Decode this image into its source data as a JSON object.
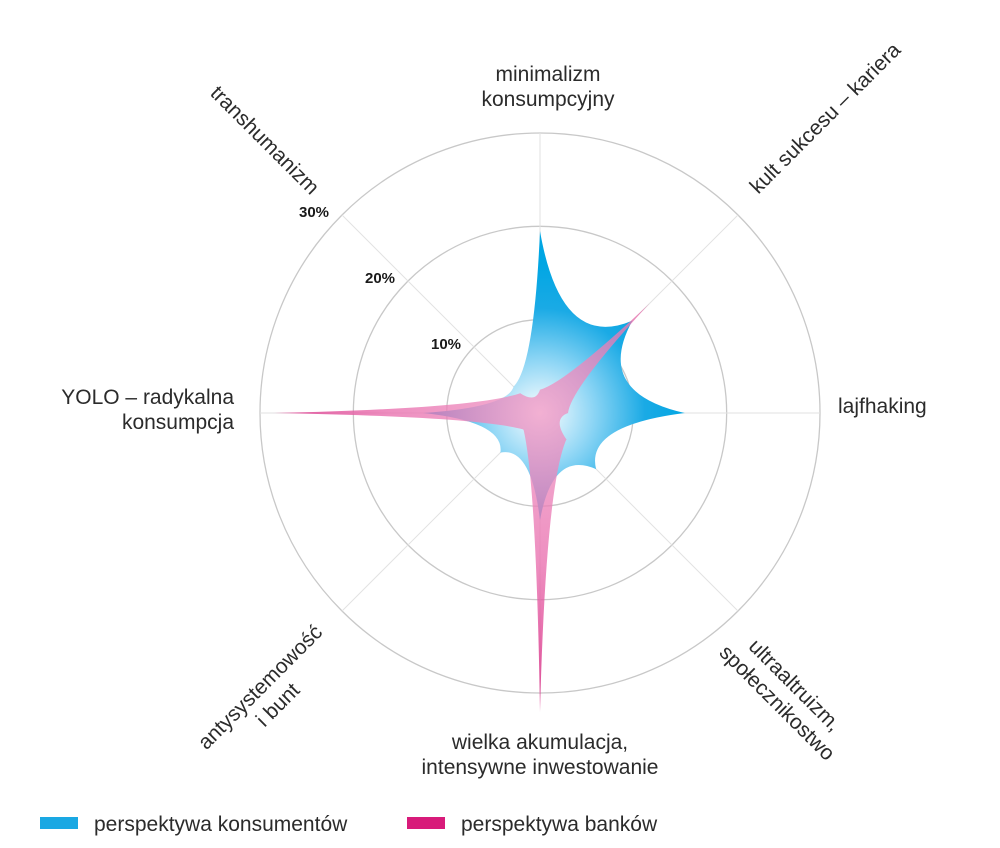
{
  "chart_data": {
    "type": "radar",
    "axes": [
      [
        "minimalizm",
        "konsumpcyjny"
      ],
      [
        "kult sukcesu – kariera"
      ],
      [
        "lajfhaking"
      ],
      [
        "ultraaltruizm,",
        "społecznikostwo"
      ],
      [
        "wielka akumulacja,",
        "intensywne inwestowanie"
      ],
      [
        "antysystemowość",
        "i bunt"
      ],
      [
        "YOLO – radykalna",
        "konsumpcja"
      ],
      [
        "transhumanizm"
      ]
    ],
    "ticks": [
      {
        "value": 10,
        "label": "10%"
      },
      {
        "value": 20,
        "label": "20%"
      },
      {
        "value": 30,
        "label": "30%"
      }
    ],
    "rmax": 30,
    "series": [
      {
        "name": "perspektywa konsumentów",
        "color": "#1aa8e3",
        "values": [
          19.5,
          14,
          15.5,
          8.5,
          11.5,
          6,
          12.5,
          4
        ]
      },
      {
        "name": "perspektywa banków",
        "color": "#d81b7a",
        "values": [
          2.5,
          16.5,
          3,
          4,
          32,
          2.5,
          28.5,
          3
        ]
      }
    ],
    "legend": "bottom"
  }
}
